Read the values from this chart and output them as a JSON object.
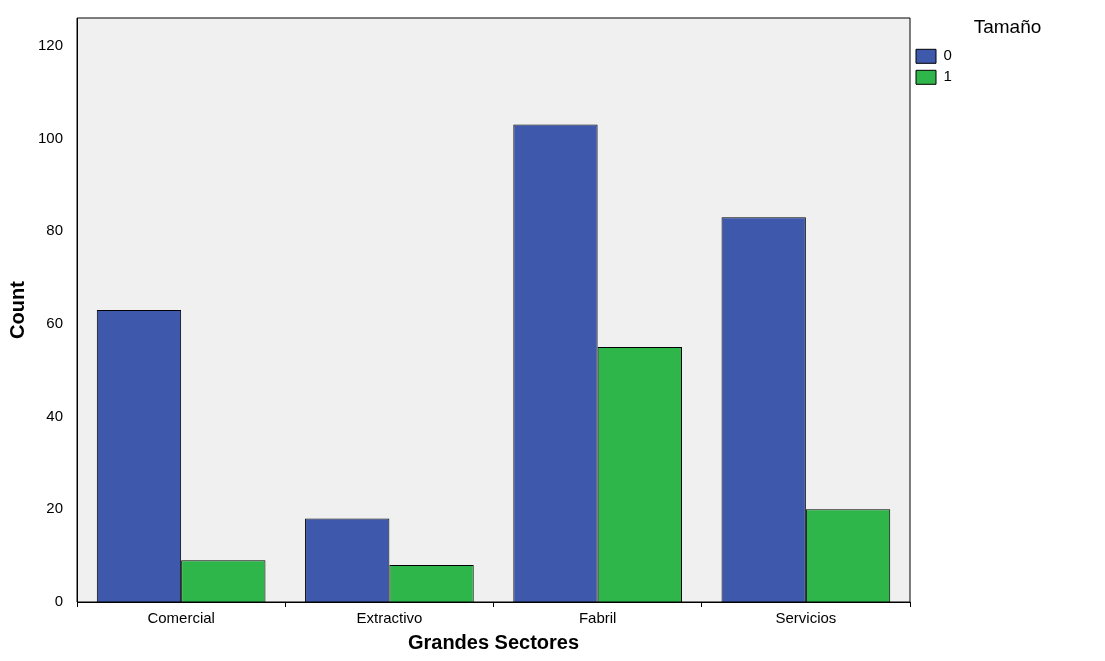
{
  "chart_data": {
    "type": "bar",
    "xlabel": "Grandes Sectores",
    "ylabel": "Count",
    "legend_title": "Tamaño",
    "legend": "top right",
    "grid": false,
    "categories": [
      "Comercial",
      "Extractivo",
      "Fabril",
      "Servicios"
    ],
    "series": [
      {
        "name": "0",
        "color": "#3e58ac",
        "values": [
          63,
          18,
          103,
          83
        ]
      },
      {
        "name": "1",
        "color": "#2fb64a",
        "values": [
          9,
          8,
          55,
          20
        ]
      }
    ],
    "ylim": [
      0,
      126
    ],
    "yticks": [
      0,
      20,
      40,
      60,
      80,
      100,
      120
    ]
  }
}
